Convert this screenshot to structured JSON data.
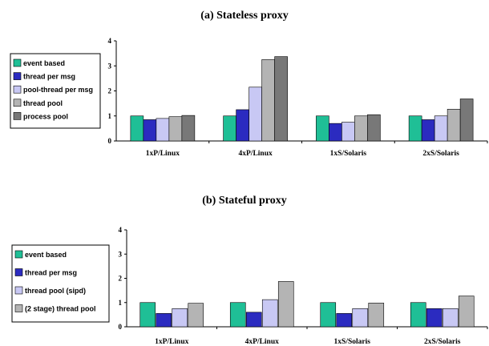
{
  "chart_data": [
    {
      "type": "bar",
      "title": "(a) Stateless proxy",
      "categories": [
        "1xP/Linux",
        "4xP/Linux",
        "1xS/Solaris",
        "2xS/Solaris"
      ],
      "ylim": [
        0,
        4
      ],
      "yticks": [
        0,
        1,
        2,
        3,
        4
      ],
      "grid": false,
      "legend_position": "left",
      "series": [
        {
          "name": "event based",
          "color": "#1fbf96",
          "values": [
            1.0,
            1.0,
            1.0,
            1.0
          ]
        },
        {
          "name": "thread per msg",
          "color": "#2b2bc0",
          "values": [
            0.85,
            1.25,
            0.7,
            0.85
          ]
        },
        {
          "name": "pool-thread per msg",
          "color": "#c8c8f4",
          "values": [
            0.9,
            2.15,
            0.75,
            1.0
          ]
        },
        {
          "name": "thread pool",
          "color": "#b4b4b4",
          "values": [
            0.97,
            3.25,
            1.0,
            1.27
          ]
        },
        {
          "name": "process pool",
          "color": "#787878",
          "values": [
            1.02,
            3.37,
            1.05,
            1.68
          ]
        }
      ]
    },
    {
      "type": "bar",
      "title": "(b) Stateful proxy",
      "categories": [
        "1xP/Linux",
        "4xP/Linux",
        "1xS/Solaris",
        "2xS/Solaris"
      ],
      "ylim": [
        0,
        4
      ],
      "yticks": [
        0,
        1,
        2,
        3,
        4
      ],
      "grid": false,
      "legend_position": "left",
      "series": [
        {
          "name": "event based",
          "color": "#1fbf96",
          "values": [
            1.0,
            1.0,
            1.0,
            1.0
          ]
        },
        {
          "name": "thread per msg",
          "color": "#2b2bc0",
          "values": [
            0.55,
            0.6,
            0.55,
            0.75
          ]
        },
        {
          "name": "thread pool (sipd)",
          "color": "#c8c8f4",
          "values": [
            0.75,
            1.12,
            0.75,
            0.75
          ]
        },
        {
          "name": "(2 stage) thread pool",
          "color": "#b4b4b4",
          "values": [
            0.97,
            1.87,
            0.98,
            1.27
          ]
        }
      ]
    }
  ]
}
